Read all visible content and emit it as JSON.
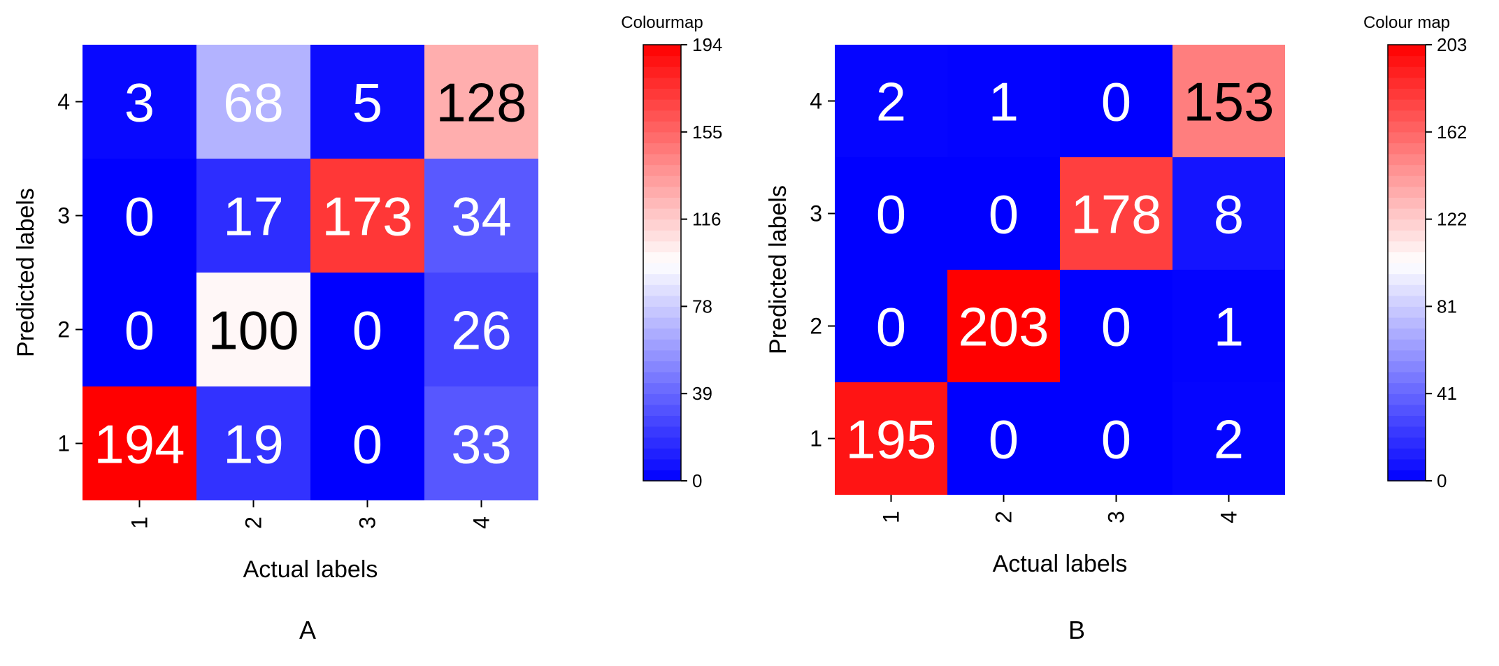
{
  "chart_data": [
    {
      "type": "heatmap",
      "panel_label": "A",
      "xlabel": "Actual labels",
      "ylabel": "Predicted labels",
      "x_categories": [
        "1",
        "2",
        "3",
        "4"
      ],
      "y_categories": [
        "1",
        "2",
        "3",
        "4"
      ],
      "matrix_rows_top_to_bottom": [
        {
          "predicted": "4",
          "values": [
            3,
            68,
            5,
            128
          ]
        },
        {
          "predicted": "3",
          "values": [
            0,
            17,
            173,
            34
          ]
        },
        {
          "predicted": "2",
          "values": [
            0,
            100,
            0,
            26
          ]
        },
        {
          "predicted": "1",
          "values": [
            194,
            19,
            0,
            33
          ]
        }
      ],
      "colorbar": {
        "title": "Colourmap",
        "min": 0,
        "max": 194,
        "ticks": [
          "0",
          "39",
          "78",
          "116",
          "155",
          "194"
        ],
        "low_color": "#0000ff",
        "mid_color": "#ffffff",
        "high_color": "#ff0000"
      },
      "grid": false
    },
    {
      "type": "heatmap",
      "panel_label": "B",
      "xlabel": "Actual labels",
      "ylabel": "Predicted labels",
      "x_categories": [
        "1",
        "2",
        "3",
        "4"
      ],
      "y_categories": [
        "1",
        "2",
        "3",
        "4"
      ],
      "matrix_rows_top_to_bottom": [
        {
          "predicted": "4",
          "values": [
            2,
            1,
            0,
            153
          ]
        },
        {
          "predicted": "3",
          "values": [
            0,
            0,
            178,
            8
          ]
        },
        {
          "predicted": "2",
          "values": [
            0,
            203,
            0,
            1
          ]
        },
        {
          "predicted": "1",
          "values": [
            195,
            0,
            0,
            2
          ]
        }
      ],
      "colorbar": {
        "title": "Colour map",
        "min": 0,
        "max": 203,
        "ticks": [
          "0",
          "41",
          "81",
          "122",
          "162",
          "203"
        ],
        "low_color": "#0000ff",
        "mid_color": "#ffffff",
        "high_color": "#ff0000"
      },
      "grid": false
    }
  ]
}
